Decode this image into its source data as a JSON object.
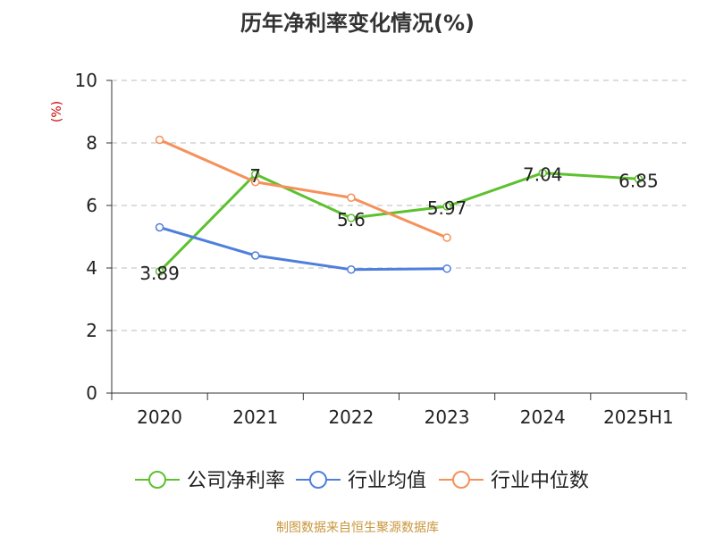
{
  "title": "历年净利率变化情况(%)",
  "source_text": "制图数据来自恒生聚源数据库",
  "colors": {
    "title": "#333333",
    "unit_label": "#cc0000",
    "source": "#c8963c",
    "grid": "#bbbbbb",
    "axis": "#333333",
    "text": "#222222"
  },
  "chart_data": {
    "type": "line",
    "title": "历年净利率变化情况(%)",
    "ylabel": "(%)",
    "xlabel": "",
    "categories": [
      "2020",
      "2021",
      "2022",
      "2023",
      "2024",
      "2025H1"
    ],
    "ylim": [
      0,
      10
    ],
    "yticks": [
      "0",
      "2",
      "4",
      "6",
      "8",
      "10"
    ],
    "grid": true,
    "legend_position": "bottom",
    "series": [
      {
        "name": "公司净利率",
        "color": "#5dc12f",
        "values": [
          3.89,
          7,
          5.6,
          5.97,
          7.04,
          6.85
        ],
        "labels": [
          "3.89",
          "7",
          "5.6",
          "5.97",
          "7.04",
          "6.85"
        ]
      },
      {
        "name": "行业均值",
        "color": "#4f7fdc",
        "values": [
          5.3,
          4.4,
          3.95,
          3.98,
          null,
          null
        ]
      },
      {
        "name": "行业中位数",
        "color": "#f5915a",
        "values": [
          8.1,
          6.75,
          6.25,
          4.97,
          null,
          null
        ]
      }
    ]
  }
}
